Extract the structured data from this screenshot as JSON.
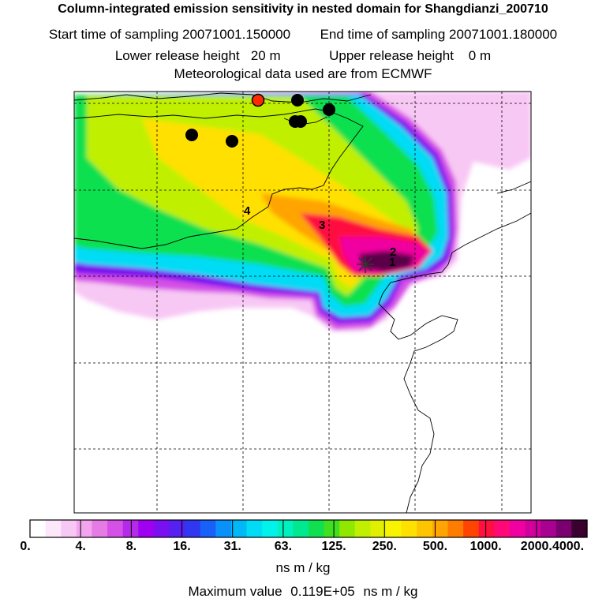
{
  "header": {
    "title": "Column-integrated emission sensitivity in nested domain for Shangdianzi_200710",
    "start_label": "Start time of sampling 20071001.150000",
    "end_label": "End time of sampling 20071001.180000",
    "lower_label": "Lower release height   20 m",
    "upper_label": "Upper release height    0 m",
    "met_label": "Meteorological data used are from ECMWF"
  },
  "map": {
    "numbers": [
      "1",
      "2",
      "3",
      "4"
    ],
    "station_color": "#ff2a00",
    "marker_color": "#000000"
  },
  "legend": {
    "ticks": [
      "0.",
      "4.",
      "8.",
      "16.",
      "31.",
      "63.",
      "125.",
      "250.",
      "500.",
      "1000.",
      "2000.",
      "4000."
    ],
    "colors": [
      "#ffffff",
      "#fde8fb",
      "#f8c8f4",
      "#f2a4ef",
      "#e67be6",
      "#d550e6",
      "#b52ae8",
      "#9f00f0",
      "#7a10f0",
      "#5520f0",
      "#2f38f0",
      "#1760f8",
      "#0a90fa",
      "#00b8f8",
      "#00dcf5",
      "#00f2ea",
      "#00f0c0",
      "#00e890",
      "#10e050",
      "#40e020",
      "#90e800",
      "#c0f000",
      "#e0f000",
      "#f8f400",
      "#ffe000",
      "#ffc400",
      "#ffa400",
      "#ff7c00",
      "#ff4400",
      "#ff1040",
      "#ff0878",
      "#f000a0",
      "#d0009c",
      "#a80090",
      "#7a0070",
      "#3a0030"
    ],
    "units": "ns m / kg"
  },
  "footer": {
    "max_label": "Maximum value",
    "max_value": "0.119E+05",
    "max_units": "ns m / kg"
  }
}
